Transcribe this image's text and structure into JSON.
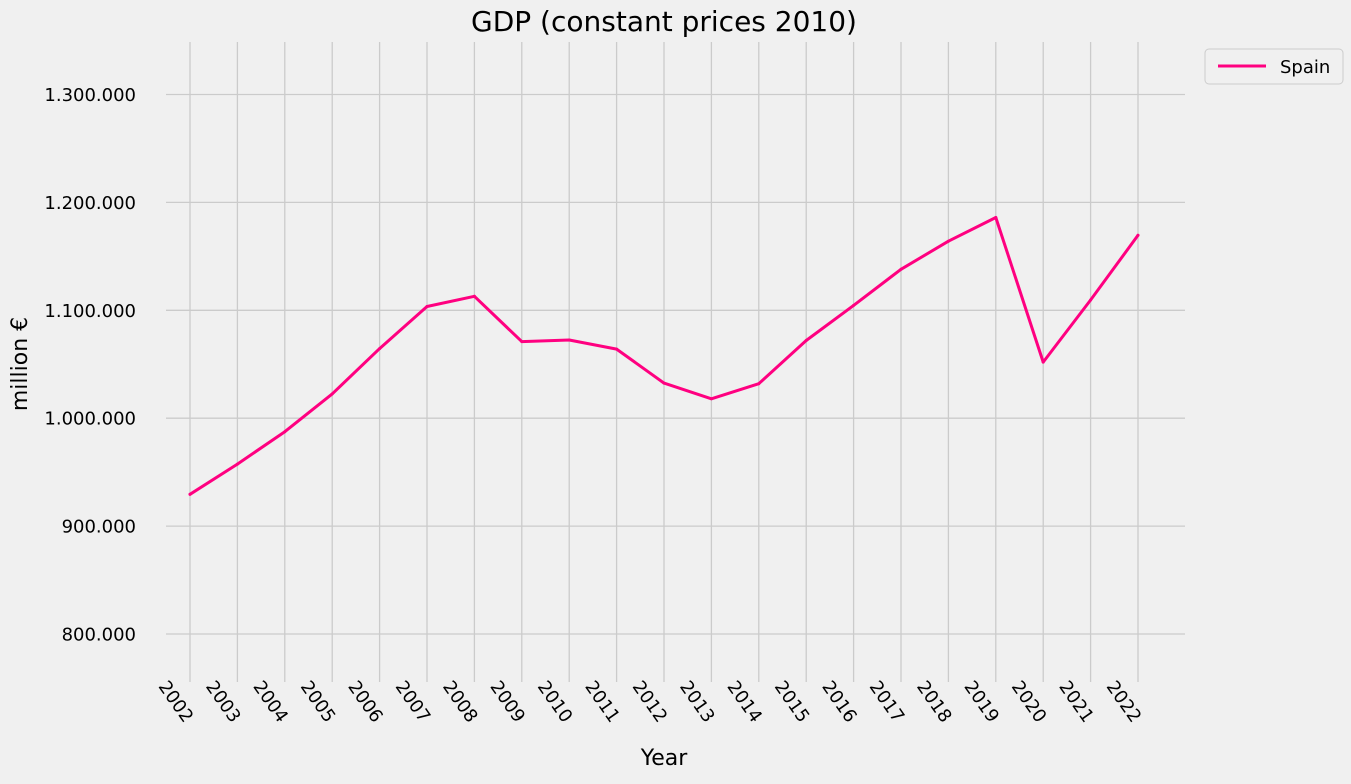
{
  "chart_data": {
    "type": "line",
    "title": "GDP (constant prices 2010)",
    "xlabel": "Year",
    "ylabel": "million €",
    "x": [
      2002,
      2003,
      2004,
      2005,
      2006,
      2007,
      2008,
      2009,
      2010,
      2011,
      2012,
      2013,
      2014,
      2015,
      2016,
      2017,
      2018,
      2019,
      2020,
      2021,
      2022
    ],
    "x_tick_labels": [
      "2002",
      "2003",
      "2004",
      "2005",
      "2006",
      "2007",
      "2008",
      "2009",
      "2010",
      "2011",
      "2012",
      "2013",
      "2014",
      "2015",
      "2016",
      "2017",
      "2018",
      "2019",
      "2020",
      "2021",
      "2022"
    ],
    "ylim": [
      750000,
      1350000
    ],
    "y_ticks": [
      800000,
      900000,
      1000000,
      1100000,
      1200000,
      1300000
    ],
    "y_tick_labels": [
      "800.000",
      "900.000",
      "1.000.000",
      "1.100.000",
      "1.200.000",
      "1.300.000"
    ],
    "grid": true,
    "legend_position": "outside-top-right",
    "series": [
      {
        "name": "Spain",
        "color": "#ff0080",
        "values": [
          929500,
          957500,
          987500,
          1022500,
          1064500,
          1103500,
          1113000,
          1071000,
          1072500,
          1064000,
          1032500,
          1018000,
          1032000,
          1072000,
          1104500,
          1138000,
          1164000,
          1186000,
          1052000,
          1109500,
          1169500
        ]
      }
    ]
  }
}
